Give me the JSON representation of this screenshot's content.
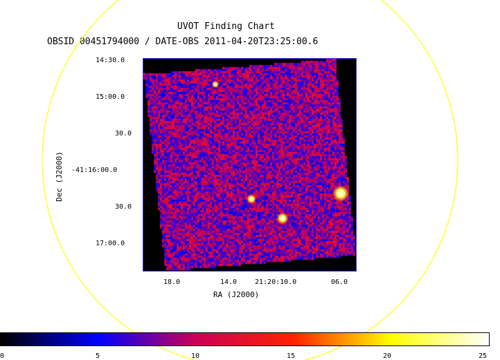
{
  "header": {
    "title": "UVOT Finding Chart",
    "subtitle": "OBSID 00451794000 / DATE-OBS 2011-04-20T23:25:00.6"
  },
  "axes": {
    "x_label": "RA (J2000)",
    "y_label": "Dec (J2000)",
    "y_ticks": [
      "14:30.0",
      "15:00.0",
      "30.0",
      "-41:16:00.0",
      "30.0",
      "17:00.0"
    ],
    "x_ticks": [
      "18.0",
      "14.0",
      "21:20:10.0",
      "06.0"
    ]
  },
  "colorbar": {
    "labels": [
      "0",
      "5",
      "10",
      "15",
      "20",
      "25"
    ],
    "colormap": [
      "#000000",
      "#0000ff",
      "#cc0055",
      "#ff2200",
      "#ffff00",
      "#ffffff"
    ]
  },
  "colors": {
    "circle": "#ffff00",
    "frame": "#3a3aff"
  }
}
